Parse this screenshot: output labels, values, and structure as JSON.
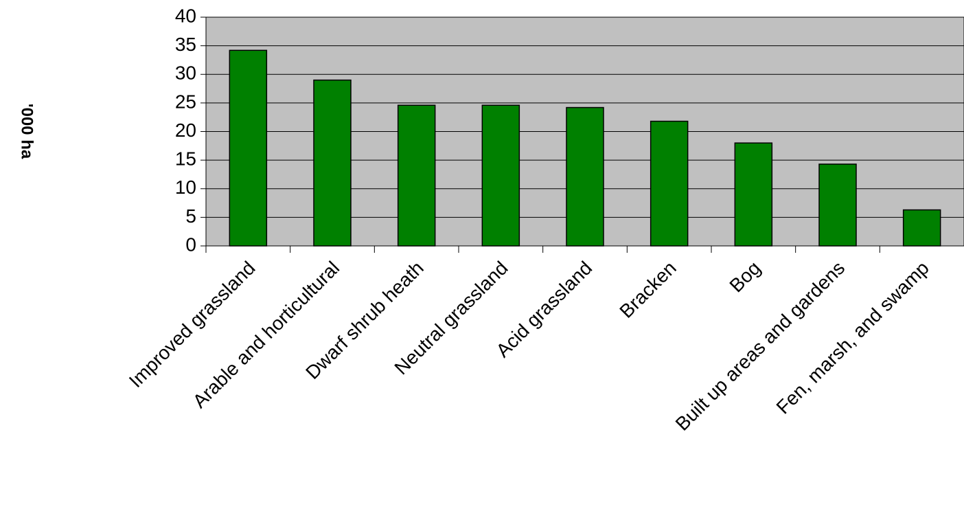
{
  "chart_data": {
    "type": "bar",
    "categories": [
      "Improved grassland",
      "Arable and horticultural",
      "Dwarf shrub heath",
      "Neutral grassland",
      "Acid grassland",
      "Bracken",
      "Bog",
      "Built up areas and gardens",
      "Fen, marsh, and swamp"
    ],
    "values": [
      34.2,
      29.0,
      24.6,
      24.6,
      24.2,
      21.8,
      18.0,
      14.3,
      6.3
    ],
    "ylabel": "'000 ha",
    "ylim": [
      0,
      40
    ],
    "yticks": [
      "0",
      "5",
      "10",
      "15",
      "20",
      "25",
      "30",
      "35",
      "40"
    ],
    "grid": true,
    "legend": "none",
    "colors": {
      "bar": "#008000",
      "bar_outline": "#000000",
      "plot_background": "#c0c0c0",
      "gridline": "#000000"
    }
  }
}
